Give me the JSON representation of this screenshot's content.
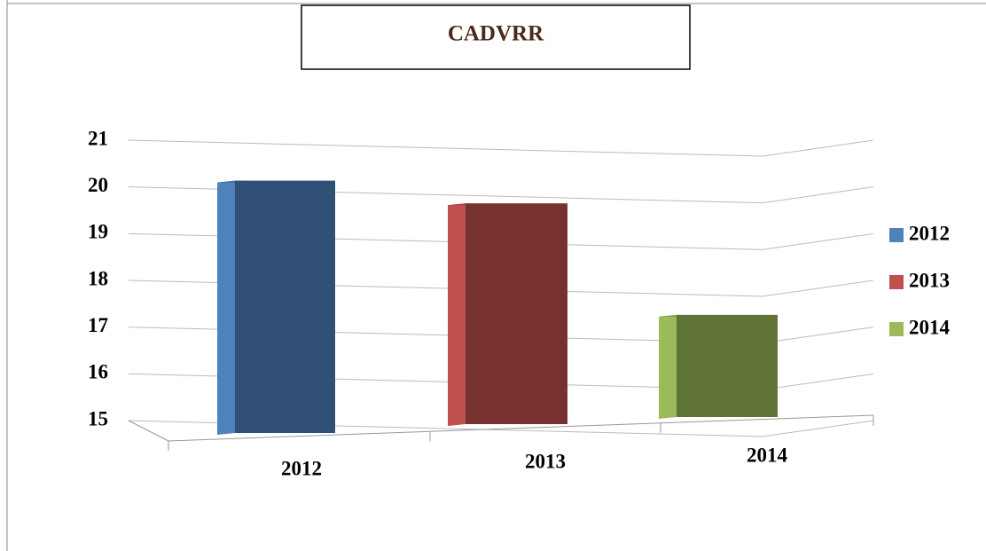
{
  "chart_data": {
    "type": "bar3d",
    "title": "CADVRR",
    "categories": [
      "2012",
      "2013",
      "2014"
    ],
    "series": [
      {
        "name": "2012",
        "color": "#4f81bd",
        "values": [
          20.4,
          null,
          null
        ]
      },
      {
        "name": "2013",
        "color": "#c0504d",
        "values": [
          null,
          19.8,
          null
        ]
      },
      {
        "name": "2014",
        "color": "#9bbb59",
        "values": [
          null,
          null,
          17.3
        ]
      }
    ],
    "ylim": [
      15,
      21
    ],
    "yticks": [
      15,
      16,
      17,
      18,
      19,
      20,
      21
    ],
    "grid": true,
    "legend": "right"
  }
}
